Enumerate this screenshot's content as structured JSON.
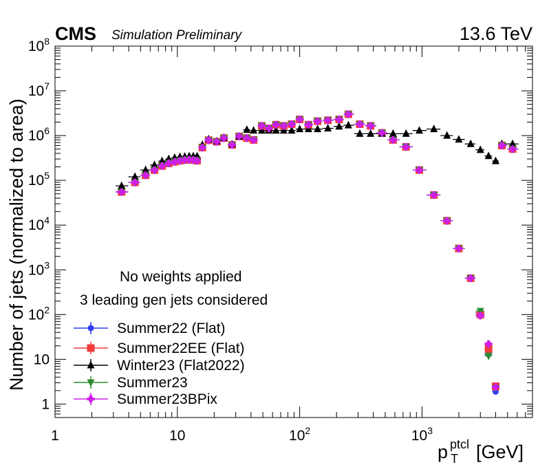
{
  "header": {
    "experiment": "CMS",
    "status": "Simulation Preliminary",
    "energy": "13.6 TeV"
  },
  "chart_data": {
    "type": "scatter",
    "xscale": "log",
    "yscale": "log",
    "xlim": [
      1,
      8000
    ],
    "ylim": [
      0.5,
      100000000
    ],
    "ylabel": "Number of jets (normalized to area)",
    "xlabel_base": "p",
    "xlabel_sup": "ptcl",
    "xlabel_sub": "T",
    "xlabel_unit": "[GeV]",
    "x_tick_labels": [
      {
        "value": 1,
        "base": "1",
        "exp": ""
      },
      {
        "value": 10,
        "base": "10",
        "exp": ""
      },
      {
        "value": 100,
        "base": "10",
        "exp": "2"
      },
      {
        "value": 1000,
        "base": "10",
        "exp": "3"
      }
    ],
    "y_tick_labels": [
      {
        "value": 1,
        "base": "1",
        "exp": ""
      },
      {
        "value": 10,
        "base": "10",
        "exp": ""
      },
      {
        "value": 100,
        "base": "10",
        "exp": "2"
      },
      {
        "value": 1000,
        "base": "10",
        "exp": "3"
      },
      {
        "value": 10000,
        "base": "10",
        "exp": "4"
      },
      {
        "value": 100000,
        "base": "10",
        "exp": "5"
      },
      {
        "value": 1000000,
        "base": "10",
        "exp": "6"
      },
      {
        "value": 10000000,
        "base": "10",
        "exp": "7"
      },
      {
        "value": 100000000,
        "base": "10",
        "exp": "8"
      }
    ],
    "annotations": [
      "No weights applied",
      "3 leading gen jets considered"
    ],
    "legend_position": "bottom-left",
    "x": [
      3.5,
      4.4,
      5.5,
      6.5,
      7.5,
      8.5,
      9.5,
      10.5,
      11.5,
      12.5,
      13.5,
      14.5,
      16,
      18,
      21,
      24,
      28,
      32,
      37,
      43,
      49,
      56,
      64,
      74,
      84,
      97,
      114,
      133,
      153,
      174,
      196,
      220,
      245,
      272,
      300,
      330,
      362,
      395,
      430,
      468,
      507,
      548,
      592,
      638,
      686,
      737,
      790,
      846,
      905,
      967,
      1032,
      1101,
      1172,
      1248,
      1327,
      1410,
      1497,
      1588,
      1784,
      2116,
      2500,
      2941,
      3450,
      3637,
      4037,
      4480,
      4709,
      5000,
      6000
    ],
    "series": [
      {
        "name": "Summer22 (Flat)",
        "color": "#2f3cf0",
        "marker": "circle",
        "x": [
          3.5,
          4.5,
          5.5,
          6.5,
          7.5,
          8.5,
          9.5,
          10.5,
          11.5,
          12.5,
          13.5,
          14.5,
          16,
          18,
          21,
          24,
          28,
          32,
          37,
          42,
          49,
          56,
          64,
          74,
          86,
          100,
          118,
          140,
          170,
          210,
          250,
          310,
          380,
          470,
          580,
          740,
          950,
          1250,
          1600,
          2000,
          2500,
          3000,
          3500,
          4000,
          4500,
          5500
        ],
        "values": [
          55000,
          90000,
          130000,
          170000,
          210000,
          240000,
          260000,
          275000,
          285000,
          290000,
          285000,
          275000,
          540000,
          790000,
          730000,
          880000,
          620000,
          960000,
          880000,
          800000,
          1650000,
          1450000,
          1750000,
          1650000,
          1800000,
          2300000,
          1750000,
          2100000,
          2200000,
          2300000,
          3000000,
          1800000,
          1650000,
          1150000,
          800000,
          560000,
          170000,
          47000,
          12500,
          3000,
          650,
          110,
          13,
          1.9,
          600000,
          500000
        ]
      },
      {
        "name": "Summer22EE (Flat)",
        "color": "#f23c3c",
        "marker": "square",
        "x": [
          3.5,
          4.5,
          5.5,
          6.5,
          7.5,
          8.5,
          9.5,
          10.5,
          11.5,
          12.5,
          13.5,
          14.5,
          16,
          18,
          21,
          24,
          28,
          32,
          37,
          42,
          49,
          56,
          64,
          74,
          86,
          100,
          118,
          140,
          170,
          210,
          250,
          310,
          380,
          470,
          580,
          740,
          950,
          1250,
          1600,
          2000,
          2500,
          3000,
          3500,
          4000,
          4500,
          5500
        ],
        "values": [
          55000,
          90000,
          130000,
          170000,
          210000,
          240000,
          260000,
          275000,
          285000,
          290000,
          285000,
          275000,
          540000,
          790000,
          730000,
          880000,
          620000,
          960000,
          880000,
          800000,
          1650000,
          1450000,
          1750000,
          1650000,
          1800000,
          2300000,
          1750000,
          2100000,
          2200000,
          2300000,
          3000000,
          1800000,
          1650000,
          1150000,
          800000,
          560000,
          170000,
          47000,
          12500,
          3000,
          650,
          100,
          17,
          2.5,
          600000,
          500000
        ]
      },
      {
        "name": "Winter23 (Flat2022)",
        "color": "#000000",
        "marker": "triangle-up",
        "x": [
          3.5,
          4.5,
          5.5,
          6.5,
          7.5,
          8.5,
          9.5,
          10.5,
          11.5,
          12.5,
          13.5,
          14.5,
          16,
          18,
          21,
          24,
          28,
          32,
          37,
          42,
          49,
          56,
          64,
          74,
          86,
          100,
          118,
          140,
          170,
          210,
          250,
          310,
          380,
          470,
          580,
          740,
          950,
          1250,
          1600,
          2000,
          2500,
          3000,
          3500,
          4000,
          4500,
          5500
        ],
        "values": [
          75000,
          120000,
          170000,
          220000,
          270000,
          300000,
          320000,
          335000,
          340000,
          345000,
          345000,
          345000,
          620000,
          830000,
          750000,
          900000,
          640000,
          950000,
          1350000,
          1300000,
          1300000,
          1300000,
          1300000,
          1300000,
          1300000,
          1400000,
          1400000,
          1400000,
          1450000,
          1600000,
          1700000,
          1100000,
          1100000,
          1100000,
          1100000,
          1100000,
          1300000,
          1400000,
          1000000,
          820000,
          650000,
          480000,
          350000,
          270000,
          650000,
          650000
        ]
      },
      {
        "name": "Summer23",
        "color": "#2e8b2e",
        "marker": "triangle-down",
        "x": [
          3.5,
          4.5,
          5.5,
          6.5,
          7.5,
          8.5,
          9.5,
          10.5,
          11.5,
          12.5,
          13.5,
          14.5,
          16,
          18,
          21,
          24,
          28,
          32,
          37,
          42,
          49,
          56,
          64,
          74,
          86,
          100,
          118,
          140,
          170,
          210,
          250,
          310,
          380,
          470,
          580,
          740,
          950,
          1250,
          1600,
          2000,
          2500,
          3000,
          3500,
          4000,
          4500,
          5500
        ],
        "values": [
          55000,
          90000,
          130000,
          170000,
          210000,
          240000,
          260000,
          275000,
          285000,
          290000,
          285000,
          275000,
          540000,
          790000,
          730000,
          880000,
          620000,
          960000,
          880000,
          800000,
          1650000,
          1450000,
          1750000,
          1650000,
          1800000,
          2300000,
          1750000,
          2100000,
          2200000,
          2300000,
          3000000,
          1800000,
          1650000,
          1150000,
          800000,
          560000,
          170000,
          47000,
          12500,
          3000,
          650,
          120,
          12,
          2.3,
          600000,
          500000
        ]
      },
      {
        "name": "Summer23BPix",
        "color": "#cc1fe8",
        "marker": "cross",
        "x": [
          3.5,
          4.5,
          5.5,
          6.5,
          7.5,
          8.5,
          9.5,
          10.5,
          11.5,
          12.5,
          13.5,
          14.5,
          16,
          18,
          21,
          24,
          28,
          32,
          37,
          42,
          49,
          56,
          64,
          74,
          86,
          100,
          118,
          140,
          170,
          210,
          250,
          310,
          380,
          470,
          580,
          740,
          950,
          1250,
          1600,
          2000,
          2500,
          3000,
          3500,
          4000,
          4500,
          5500
        ],
        "values": [
          55000,
          90000,
          130000,
          170000,
          210000,
          240000,
          260000,
          275000,
          285000,
          290000,
          285000,
          275000,
          540000,
          790000,
          730000,
          880000,
          620000,
          960000,
          880000,
          800000,
          1650000,
          1450000,
          1750000,
          1650000,
          1800000,
          2300000,
          1750000,
          2100000,
          2200000,
          2300000,
          3000000,
          1800000,
          1650000,
          1150000,
          800000,
          560000,
          170000,
          47000,
          12500,
          3000,
          650,
          95,
          22,
          2.4,
          600000,
          500000
        ]
      }
    ]
  }
}
